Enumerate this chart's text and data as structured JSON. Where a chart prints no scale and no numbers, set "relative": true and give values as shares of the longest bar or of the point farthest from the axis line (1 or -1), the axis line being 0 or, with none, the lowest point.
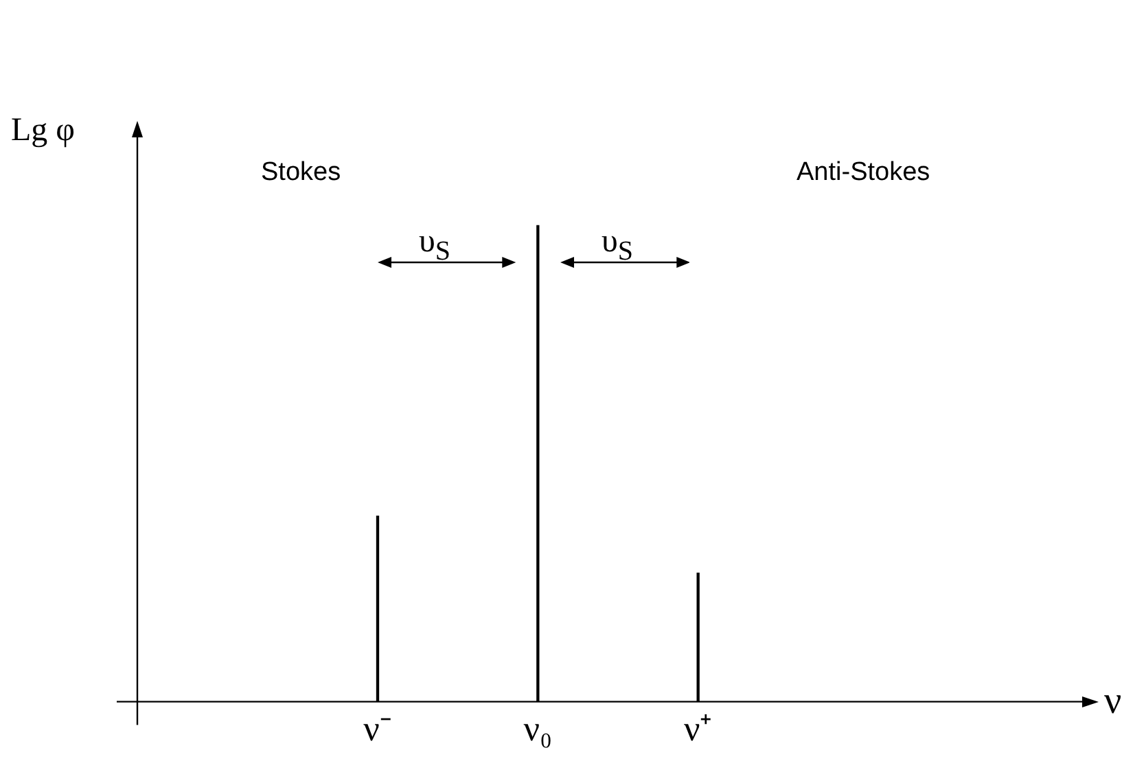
{
  "chart_data": {
    "type": "bar",
    "relative": true,
    "xlabel": "ν",
    "ylabel": "Lg φ",
    "categories": [
      null,
      "ν⁻",
      "ν₀",
      "ν⁺",
      null,
      null
    ],
    "values": [
      null,
      0.39,
      1,
      0.27,
      null,
      null
    ],
    "color": "#000000",
    "grid": false,
    "legend": false,
    "tick_labels": "x",
    "annotations": [
      "Stokes",
      "Anti-Stokes",
      "υ$_{S}$",
      "υ$_{S}$"
    ]
  }
}
